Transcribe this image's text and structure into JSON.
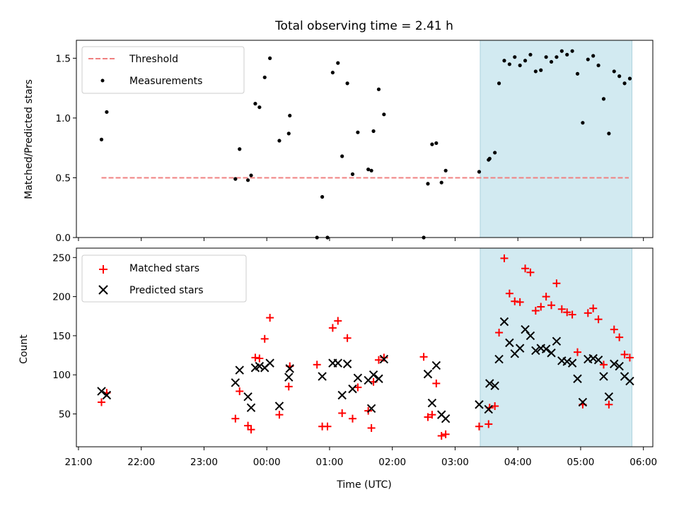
{
  "figure": {
    "title": "Total observing time = 2.41 h",
    "xlabel": "Time (UTC)"
  },
  "colors": {
    "threshold": "#f08080",
    "measurements": "#000000",
    "matched": "#ff0000",
    "predicted": "#000000",
    "highlight": "#add8e6"
  },
  "chart_data": [
    {
      "type": "scatter",
      "ylabel": "Matched/Predicted stars",
      "ylim": [
        0,
        1.65
      ],
      "yticks": [
        0.0,
        0.5,
        1.0,
        1.5
      ],
      "ytick_labels": [
        "0.0",
        "0.5",
        "1.0",
        "1.5"
      ],
      "xlim": [
        "20:58",
        "06:09"
      ],
      "legend": {
        "placement": "upper-left",
        "entries": [
          "Threshold",
          "Measurements"
        ]
      },
      "threshold": {
        "name": "Threshold",
        "value": 0.5,
        "x_start": "21:22",
        "x_end": "05:46"
      },
      "highlight": {
        "x_start": "03:24",
        "x_end": "05:49"
      },
      "series": [
        {
          "name": "Measurements",
          "points": [
            [
              "21:22",
              0.82
            ],
            [
              "21:27",
              1.05
            ],
            [
              "23:30",
              0.49
            ],
            [
              "23:34",
              0.74
            ],
            [
              "23:42",
              0.48
            ],
            [
              "23:45",
              0.52
            ],
            [
              "23:49",
              1.12
            ],
            [
              "23:53",
              1.09
            ],
            [
              "23:58",
              1.34
            ],
            [
              "00:03",
              1.5
            ],
            [
              "00:12",
              0.81
            ],
            [
              "00:21",
              0.87
            ],
            [
              "00:22",
              1.02
            ],
            [
              "00:48",
              0.0
            ],
            [
              "00:53",
              0.34
            ],
            [
              "00:58",
              0.0
            ],
            [
              "01:03",
              1.38
            ],
            [
              "01:08",
              1.46
            ],
            [
              "01:12",
              0.68
            ],
            [
              "01:17",
              1.29
            ],
            [
              "01:22",
              0.53
            ],
            [
              "01:27",
              0.88
            ],
            [
              "01:37",
              0.57
            ],
            [
              "01:40",
              0.56
            ],
            [
              "01:42",
              0.89
            ],
            [
              "01:47",
              1.24
            ],
            [
              "01:52",
              1.03
            ],
            [
              "02:30",
              0.0
            ],
            [
              "02:34",
              0.45
            ],
            [
              "02:38",
              0.78
            ],
            [
              "02:42",
              0.79
            ],
            [
              "02:47",
              0.46
            ],
            [
              "02:51",
              0.56
            ],
            [
              "03:23",
              0.55
            ],
            [
              "03:32",
              0.65
            ],
            [
              "03:33",
              0.66
            ],
            [
              "03:38",
              0.71
            ],
            [
              "03:42",
              1.29
            ],
            [
              "03:47",
              1.48
            ],
            [
              "03:52",
              1.45
            ],
            [
              "03:57",
              1.51
            ],
            [
              "04:02",
              1.44
            ],
            [
              "04:07",
              1.48
            ],
            [
              "04:12",
              1.53
            ],
            [
              "04:17",
              1.39
            ],
            [
              "04:22",
              1.4
            ],
            [
              "04:27",
              1.51
            ],
            [
              "04:32",
              1.47
            ],
            [
              "04:37",
              1.51
            ],
            [
              "04:42",
              1.56
            ],
            [
              "04:47",
              1.53
            ],
            [
              "04:52",
              1.56
            ],
            [
              "04:57",
              1.37
            ],
            [
              "05:02",
              0.96
            ],
            [
              "05:07",
              1.49
            ],
            [
              "05:12",
              1.52
            ],
            [
              "05:17",
              1.44
            ],
            [
              "05:22",
              1.16
            ],
            [
              "05:27",
              0.87
            ],
            [
              "05:32",
              1.39
            ],
            [
              "05:37",
              1.35
            ],
            [
              "05:42",
              1.29
            ],
            [
              "05:47",
              1.33
            ]
          ]
        }
      ]
    },
    {
      "type": "scatter",
      "ylabel": "Count",
      "ylim": [
        8,
        262
      ],
      "yticks": [
        50,
        100,
        150,
        200,
        250
      ],
      "ytick_labels": [
        "50",
        "100",
        "150",
        "200",
        "250"
      ],
      "xlim": [
        "20:58",
        "06:09"
      ],
      "xticks": [
        "21:00",
        "22:00",
        "23:00",
        "00:00",
        "01:00",
        "02:00",
        "03:00",
        "04:00",
        "05:00",
        "06:00"
      ],
      "xtick_labels": [
        "21:00",
        "22:00",
        "23:00",
        "00:00",
        "01:00",
        "02:00",
        "03:00",
        "04:00",
        "05:00",
        "06:00"
      ],
      "legend": {
        "placement": "upper-left",
        "entries": [
          "Matched stars",
          "Predicted stars"
        ]
      },
      "highlight": {
        "x_start": "03:24",
        "x_end": "05:49"
      },
      "series": [
        {
          "name": "Matched stars",
          "points": [
            [
              "21:22",
              65
            ],
            [
              "21:27",
              77
            ],
            [
              "23:30",
              44
            ],
            [
              "23:34",
              79
            ],
            [
              "23:42",
              35
            ],
            [
              "23:45",
              30
            ],
            [
              "23:49",
              122
            ],
            [
              "23:53",
              121
            ],
            [
              "23:58",
              146
            ],
            [
              "00:03",
              173
            ],
            [
              "00:12",
              49
            ],
            [
              "00:21",
              85
            ],
            [
              "00:22",
              111
            ],
            [
              "00:48",
              113
            ],
            [
              "00:53",
              34
            ],
            [
              "00:58",
              34
            ],
            [
              "01:03",
              160
            ],
            [
              "01:08",
              169
            ],
            [
              "01:12",
              51
            ],
            [
              "01:17",
              147
            ],
            [
              "01:22",
              44
            ],
            [
              "01:27",
              84
            ],
            [
              "01:37",
              54
            ],
            [
              "01:40",
              32
            ],
            [
              "01:42",
              91
            ],
            [
              "01:47",
              119
            ],
            [
              "01:52",
              122
            ],
            [
              "02:30",
              123
            ],
            [
              "02:34",
              46
            ],
            [
              "02:38",
              49
            ],
            [
              "02:42",
              89
            ],
            [
              "02:47",
              22
            ],
            [
              "02:51",
              24
            ],
            [
              "03:23",
              34
            ],
            [
              "03:32",
              37
            ],
            [
              "03:33",
              58
            ],
            [
              "03:38",
              60
            ],
            [
              "03:42",
              154
            ],
            [
              "03:47",
              249
            ],
            [
              "03:52",
              204
            ],
            [
              "03:57",
              194
            ],
            [
              "04:02",
              193
            ],
            [
              "04:07",
              236
            ],
            [
              "04:12",
              231
            ],
            [
              "04:17",
              182
            ],
            [
              "04:22",
              187
            ],
            [
              "04:27",
              200
            ],
            [
              "04:32",
              189
            ],
            [
              "04:37",
              217
            ],
            [
              "04:42",
              184
            ],
            [
              "04:47",
              180
            ],
            [
              "04:52",
              177
            ],
            [
              "04:57",
              129
            ],
            [
              "05:02",
              62
            ],
            [
              "05:07",
              179
            ],
            [
              "05:12",
              185
            ],
            [
              "05:17",
              171
            ],
            [
              "05:22",
              113
            ],
            [
              "05:27",
              62
            ],
            [
              "05:32",
              158
            ],
            [
              "05:37",
              148
            ],
            [
              "05:42",
              126
            ],
            [
              "05:47",
              122
            ]
          ]
        },
        {
          "name": "Predicted stars",
          "points": [
            [
              "21:22",
              79
            ],
            [
              "21:27",
              74
            ],
            [
              "23:30",
              90
            ],
            [
              "23:34",
              106
            ],
            [
              "23:42",
              72
            ],
            [
              "23:45",
              58
            ],
            [
              "23:49",
              109
            ],
            [
              "23:53",
              111
            ],
            [
              "23:58",
              109
            ],
            [
              "00:03",
              115
            ],
            [
              "00:12",
              60
            ],
            [
              "00:21",
              97
            ],
            [
              "00:22",
              108
            ],
            [
              "00:53",
              98
            ],
            [
              "01:03",
              115
            ],
            [
              "01:08",
              115
            ],
            [
              "01:12",
              74
            ],
            [
              "01:17",
              114
            ],
            [
              "01:22",
              82
            ],
            [
              "01:27",
              96
            ],
            [
              "01:37",
              93
            ],
            [
              "01:40",
              57
            ],
            [
              "01:42",
              100
            ],
            [
              "01:47",
              95
            ],
            [
              "01:52",
              120
            ],
            [
              "02:34",
              101
            ],
            [
              "02:38",
              64
            ],
            [
              "02:42",
              112
            ],
            [
              "02:47",
              49
            ],
            [
              "02:51",
              44
            ],
            [
              "03:23",
              62
            ],
            [
              "03:32",
              56
            ],
            [
              "03:33",
              89
            ],
            [
              "03:38",
              86
            ],
            [
              "03:42",
              120
            ],
            [
              "03:47",
              168
            ],
            [
              "03:52",
              141
            ],
            [
              "03:57",
              127
            ],
            [
              "04:02",
              134
            ],
            [
              "04:07",
              158
            ],
            [
              "04:12",
              150
            ],
            [
              "04:17",
              131
            ],
            [
              "04:22",
              134
            ],
            [
              "04:27",
              133
            ],
            [
              "04:32",
              128
            ],
            [
              "04:37",
              143
            ],
            [
              "04:42",
              118
            ],
            [
              "04:47",
              117
            ],
            [
              "04:52",
              115
            ],
            [
              "04:57",
              95
            ],
            [
              "05:02",
              65
            ],
            [
              "05:07",
              120
            ],
            [
              "05:12",
              121
            ],
            [
              "05:17",
              119
            ],
            [
              "05:22",
              98
            ],
            [
              "05:27",
              72
            ],
            [
              "05:32",
              114
            ],
            [
              "05:37",
              111
            ],
            [
              "05:42",
              98
            ],
            [
              "05:47",
              92
            ]
          ]
        }
      ]
    }
  ]
}
